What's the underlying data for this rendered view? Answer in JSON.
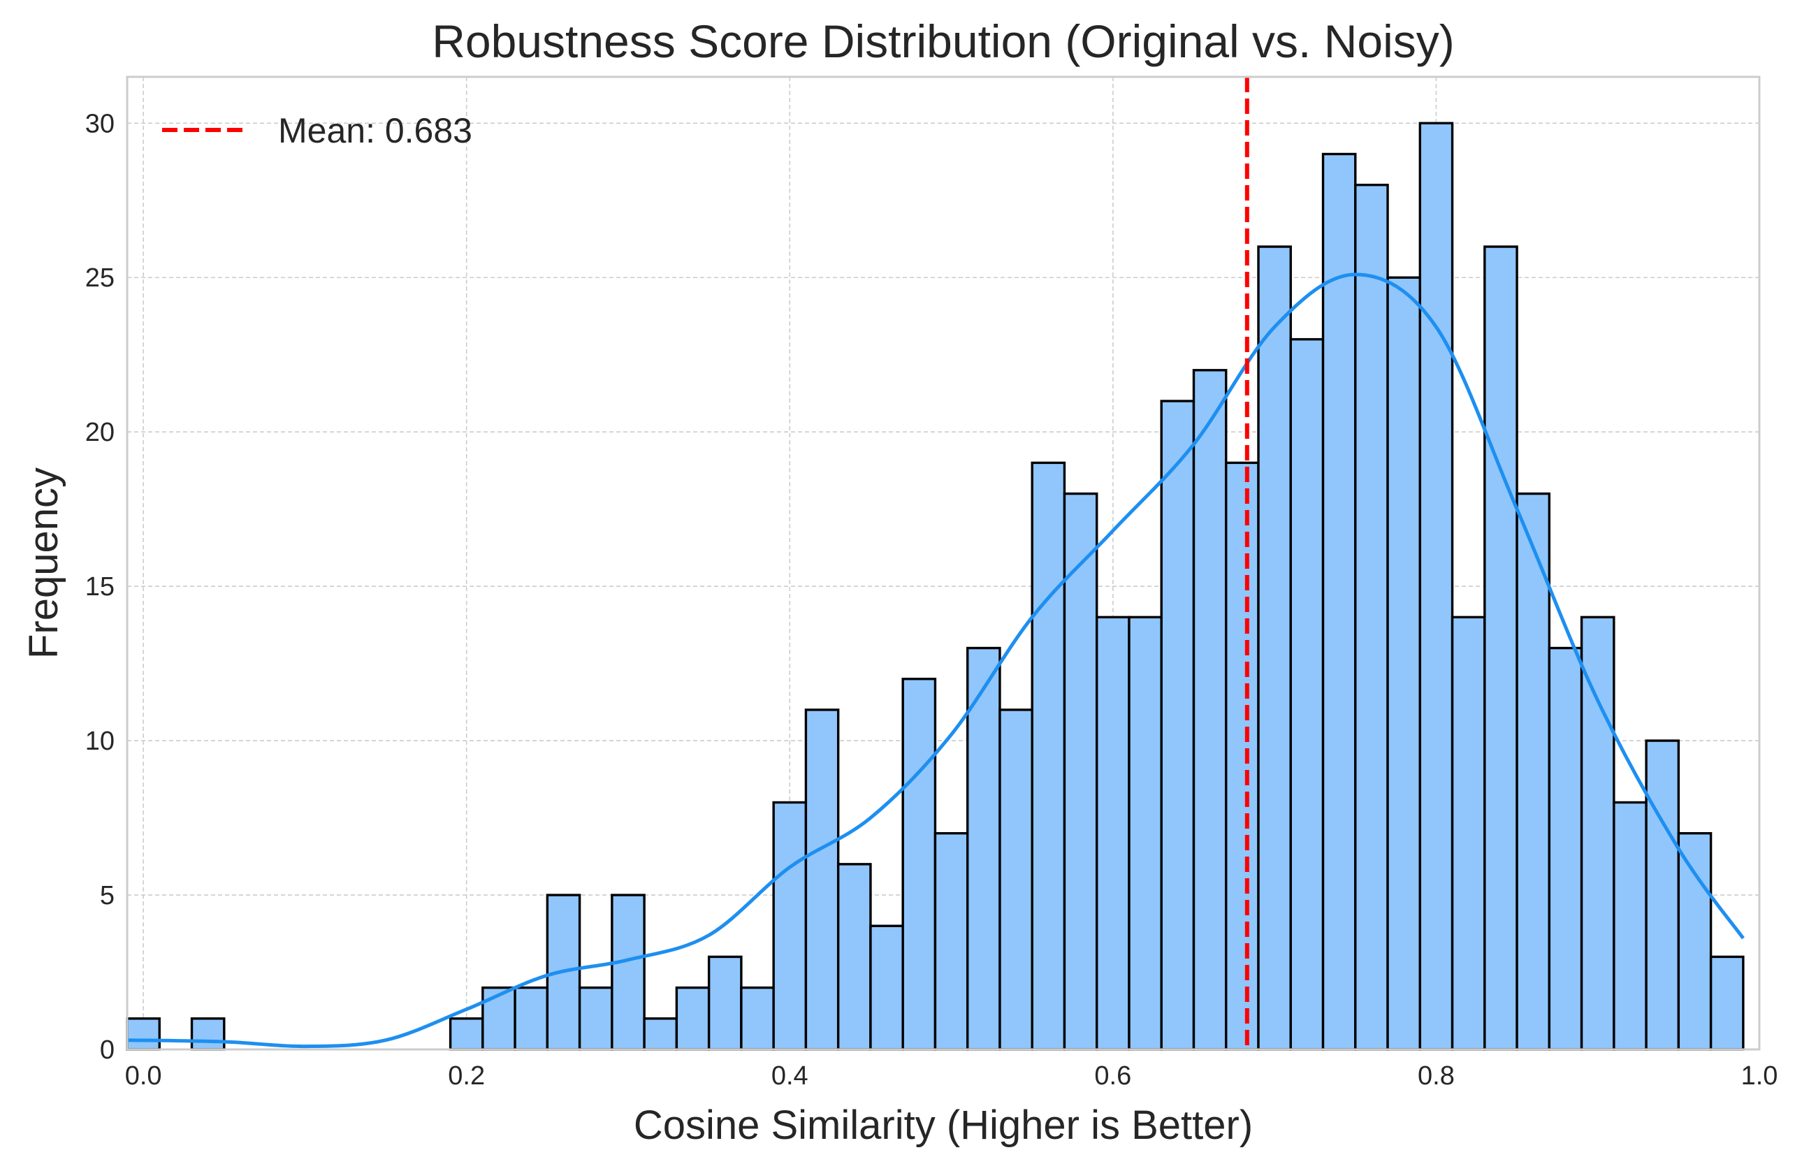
{
  "chart_data": {
    "type": "histogram",
    "title": "Robustness Score Distribution (Original vs. Noisy)",
    "xlabel": "Cosine Similarity (Higher is Better)",
    "ylabel": "Frequency",
    "xlim": [
      -0.01,
      1.0
    ],
    "ylim": [
      0,
      31.5
    ],
    "grid": true,
    "legend_position": "top-left",
    "x_ticks": [
      0.0,
      0.2,
      0.4,
      0.6,
      0.8,
      1.0
    ],
    "x_tick_labels": [
      "0.0",
      "0.2",
      "0.4",
      "0.6",
      "0.8",
      "1.0"
    ],
    "y_ticks": [
      0,
      5,
      10,
      15,
      20,
      25,
      30
    ],
    "y_tick_labels": [
      "0",
      "5",
      "10",
      "15",
      "20",
      "25",
      "30"
    ],
    "bins": {
      "start": -0.01,
      "width": 0.02,
      "counts": [
        1,
        0,
        1,
        0,
        0,
        0,
        0,
        0,
        0,
        0,
        1,
        2,
        2,
        5,
        2,
        5,
        1,
        2,
        3,
        2,
        8,
        11,
        6,
        4,
        12,
        7,
        13,
        11,
        19,
        18,
        14,
        14,
        21,
        22,
        19,
        26,
        23,
        29,
        28,
        25,
        30,
        14,
        26,
        18,
        13,
        14,
        8,
        10,
        7,
        3
      ]
    },
    "kde": {
      "x": [
        -0.01,
        0.05,
        0.1,
        0.15,
        0.2,
        0.25,
        0.3,
        0.35,
        0.4,
        0.45,
        0.5,
        0.55,
        0.6,
        0.65,
        0.7,
        0.75,
        0.8,
        0.85,
        0.9,
        0.95,
        0.99
      ],
      "y": [
        0.3,
        0.25,
        0.1,
        0.3,
        1.3,
        2.4,
        2.9,
        3.7,
        5.9,
        7.5,
        10.2,
        14.0,
        16.8,
        19.6,
        23.4,
        25.1,
        23.4,
        17.5,
        11.3,
        6.5,
        3.6
      ]
    },
    "mean_line": {
      "x": 0.683,
      "label": "Mean: 0.683",
      "color": "#ff0000"
    },
    "colors": {
      "bar_fill": "#90c6fc",
      "bar_edge": "#000000",
      "kde": "#1e8ff0",
      "grid": "#cccccc",
      "frame": "#cccccc"
    }
  }
}
